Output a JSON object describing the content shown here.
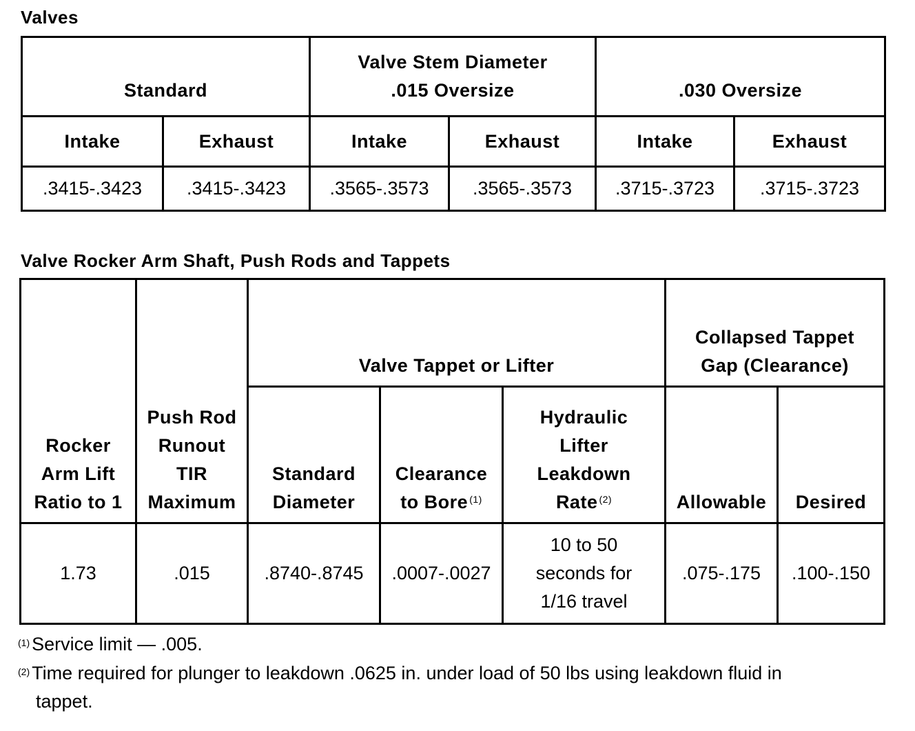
{
  "valves": {
    "title": "Valves",
    "groups": [
      "Standard",
      "Valve Stem Diameter",
      ".015 Oversize",
      ".030 Oversize"
    ],
    "subheaders": [
      "Intake",
      "Exhaust",
      "Intake",
      "Exhaust",
      "Intake",
      "Exhaust"
    ],
    "values": [
      ".3415-.3423",
      ".3415-.3423",
      ".3565-.3573",
      ".3565-.3573",
      ".3715-.3723",
      ".3715-.3723"
    ]
  },
  "rocker": {
    "title": "Valve Rocker Arm Shaft, Push Rods and Tappets",
    "h_rocker": "Rocker Arm Lift Ratio to 1",
    "h_pushrod": "Push Rod Runout TIR Maximum",
    "h_tappet": "Valve Tappet or Lifter",
    "h_collapsed": "Collapsed Tappet Gap (Clearance)",
    "h_std_dia": "Standard Diameter",
    "h_clearance": "Clearance to Bore",
    "h_clearance_note": "(1)",
    "h_leakdown": "Hydraulic Lifter Leakdown Rate",
    "h_leakdown_note": "(2)",
    "h_allowable": "Allowable",
    "h_desired": "Desired",
    "values": [
      "1.73",
      ".015",
      ".8740-.8745",
      ".0007-.0027",
      "10 to 50 seconds for 1/16 travel",
      ".075-.175",
      ".100-.150"
    ]
  },
  "footnotes": [
    {
      "mark": "(1)",
      "text": "Service limit — .005."
    },
    {
      "mark": "(2)",
      "text": "Time required for plunger to leakdown .0625 in. under load of 50 lbs using leakdown fluid in",
      "cont": "tappet."
    }
  ]
}
